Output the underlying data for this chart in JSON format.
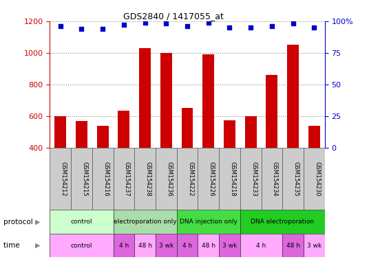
{
  "title": "GDS2840 / 1417055_at",
  "samples": [
    "GSM154212",
    "GSM154215",
    "GSM154216",
    "GSM154237",
    "GSM154238",
    "GSM154236",
    "GSM154222",
    "GSM154226",
    "GSM154218",
    "GSM154233",
    "GSM154234",
    "GSM154235",
    "GSM154230"
  ],
  "counts": [
    600,
    570,
    540,
    635,
    1030,
    1000,
    650,
    990,
    575,
    600,
    860,
    1050,
    540
  ],
  "percentile_ranks": [
    96,
    94,
    94,
    97,
    99,
    98,
    96,
    99,
    95,
    95,
    96,
    98,
    95
  ],
  "ylim_left": [
    400,
    1200
  ],
  "ylim_right": [
    0,
    100
  ],
  "yticks_left": [
    400,
    600,
    800,
    1000,
    1200
  ],
  "yticks_right": [
    0,
    25,
    50,
    75,
    100
  ],
  "bar_color": "#cc0000",
  "dot_color": "#0000cc",
  "protocol_groups": [
    {
      "label": "control",
      "start": 0,
      "end": 3,
      "color": "#ccffcc"
    },
    {
      "label": "electroporation only",
      "start": 3,
      "end": 6,
      "color": "#99ee99"
    },
    {
      "label": "DNA injection only",
      "start": 6,
      "end": 9,
      "color": "#44dd44"
    },
    {
      "label": "DNA electroporation",
      "start": 9,
      "end": 13,
      "color": "#22cc22"
    }
  ],
  "time_groups": [
    {
      "label": "control",
      "start": 0,
      "end": 3,
      "color": "#ffaaff"
    },
    {
      "label": "4 h",
      "start": 3,
      "end": 4,
      "color": "#dd66dd"
    },
    {
      "label": "48 h",
      "start": 4,
      "end": 5,
      "color": "#ffaaff"
    },
    {
      "label": "3 wk",
      "start": 5,
      "end": 6,
      "color": "#dd66dd"
    },
    {
      "label": "4 h",
      "start": 6,
      "end": 7,
      "color": "#dd66dd"
    },
    {
      "label": "48 h",
      "start": 7,
      "end": 8,
      "color": "#ffaaff"
    },
    {
      "label": "3 wk",
      "start": 8,
      "end": 9,
      "color": "#dd66dd"
    },
    {
      "label": "4 h",
      "start": 9,
      "end": 11,
      "color": "#ffaaff"
    },
    {
      "label": "48 h",
      "start": 11,
      "end": 12,
      "color": "#dd66dd"
    },
    {
      "label": "3 wk",
      "start": 12,
      "end": 13,
      "color": "#ffaaff"
    }
  ],
  "background_color": "#ffffff",
  "grid_color": "#888888",
  "sample_bg_color": "#cccccc",
  "protocol_label_color": "#000000",
  "left_axis_color": "#cc0000",
  "right_axis_color": "#0000cc"
}
